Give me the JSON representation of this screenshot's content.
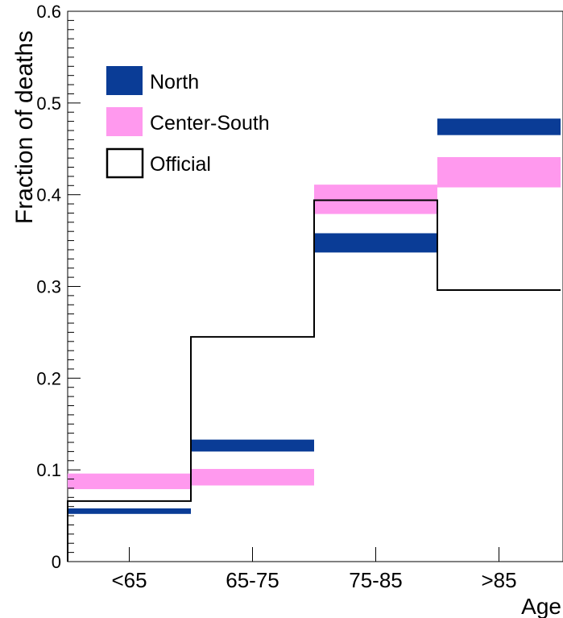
{
  "chart_data": {
    "type": "bar",
    "title": "",
    "xlabel": "Age",
    "ylabel": "Fraction of deaths",
    "categories": [
      "<65",
      "65-75",
      "75-85",
      ">85"
    ],
    "ylim": [
      0,
      0.6
    ],
    "yticks": [
      0,
      0.1,
      0.2,
      0.3,
      0.4,
      0.5,
      0.6
    ],
    "ytick_labels": [
      "0",
      "0.1",
      "0.2",
      "0.3",
      "0.4",
      "0.5",
      "0.6"
    ],
    "grid": false,
    "legend_position": "top-left",
    "series": [
      {
        "name": "North",
        "style": "band",
        "color": "#0a3c96",
        "low": [
          0.052,
          0.12,
          0.337,
          0.465
        ],
        "high": [
          0.058,
          0.133,
          0.358,
          0.483
        ]
      },
      {
        "name": "Center-South",
        "style": "band",
        "color": "#ff99ee",
        "low": [
          0.079,
          0.083,
          0.379,
          0.408
        ],
        "high": [
          0.096,
          0.101,
          0.411,
          0.441
        ]
      },
      {
        "name": "Official",
        "style": "step",
        "color": "#000000",
        "values": [
          0.066,
          0.245,
          0.394,
          0.296
        ]
      }
    ]
  }
}
